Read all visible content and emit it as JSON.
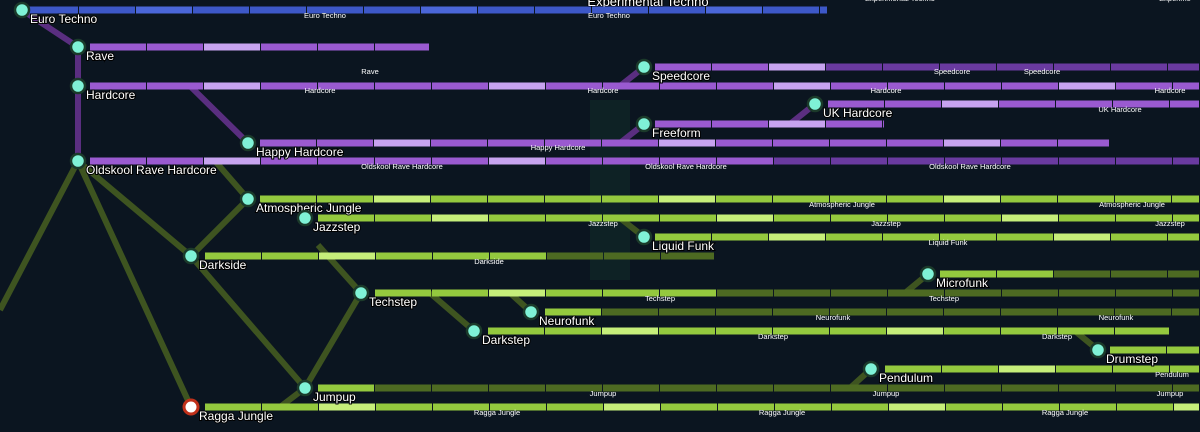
{
  "header": {
    "title": "Experimental Techno"
  },
  "nodes": [
    {
      "label": "Euro Techno"
    },
    {
      "label": "Rave"
    },
    {
      "label": "Hardcore"
    },
    {
      "label": "Oldskool Rave Hardcore"
    },
    {
      "label": "Happy Hardcore"
    },
    {
      "label": "Atmospheric Jungle"
    },
    {
      "label": "Jazzstep"
    },
    {
      "label": "Darkside"
    },
    {
      "label": "Techstep"
    },
    {
      "label": "Darkstep"
    },
    {
      "label": "Neurofunk"
    },
    {
      "label": "Jumpup"
    },
    {
      "label": "Ragga Jungle"
    },
    {
      "label": "Speedcore"
    },
    {
      "label": "Freeform"
    },
    {
      "label": "UK Hardcore"
    },
    {
      "label": "Liquid Funk"
    },
    {
      "label": "Microfunk"
    },
    {
      "label": "Pendulum"
    },
    {
      "label": "Drumstep"
    }
  ],
  "track_labels": [
    "Euro Techno",
    "Euro Techno",
    "Experimental Techno",
    "Experime",
    "Rave",
    "Hardcore",
    "Hardcore",
    "Hardcore",
    "Hardcore",
    "Speedcore",
    "Speedcore",
    "UK Hardcore",
    "Happy Hardcore",
    "Oldskool Rave Hardcore",
    "Oldskool Rave Hardcore",
    "Oldskool Rave Hardcore",
    "Atmospheric Jungle",
    "Atmospheric Jungle",
    "Jazzstep",
    "Jazzstep",
    "Jazzstep",
    "Liquid Funk",
    "Darkside",
    "Techstep",
    "Techstep",
    "Neurofunk",
    "Neurofunk",
    "Darkstep",
    "Darkstep",
    "Pendulum",
    "Jumpup",
    "Jumpup",
    "Jumpup",
    "Ragga Jungle",
    "Ragga Jungle",
    "Ragga Jungle"
  ]
}
